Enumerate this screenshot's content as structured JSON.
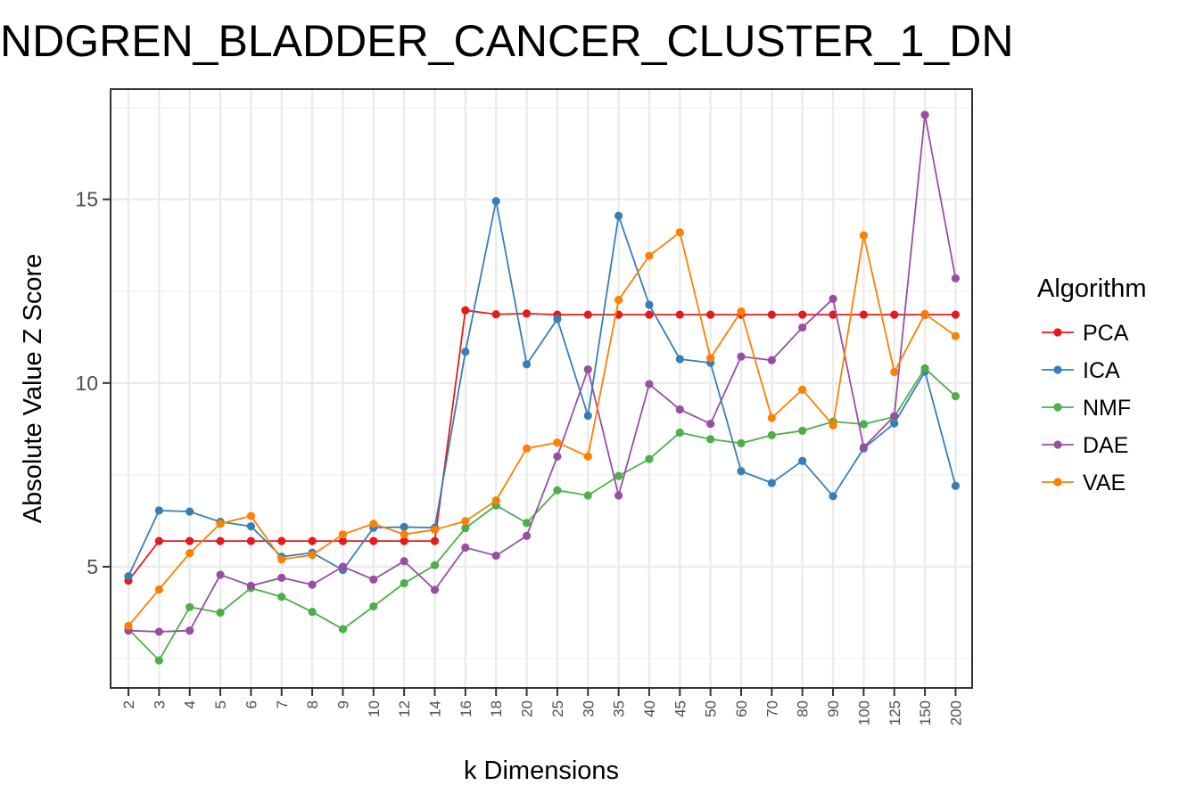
{
  "chart_data": {
    "type": "line",
    "title": "NDGREN_BLADDER_CANCER_CLUSTER_1_DN",
    "xlabel": "k Dimensions",
    "ylabel": "Absolute Value Z Score",
    "categories": [
      "2",
      "3",
      "4",
      "5",
      "6",
      "7",
      "8",
      "9",
      "10",
      "12",
      "14",
      "16",
      "18",
      "20",
      "25",
      "30",
      "35",
      "40",
      "45",
      "50",
      "60",
      "70",
      "80",
      "90",
      "100",
      "125",
      "150",
      "200"
    ],
    "yticks": [
      5,
      10,
      15
    ],
    "ylim": [
      1.7,
      18.0
    ],
    "grid": true,
    "legend": {
      "title": "Algorithm",
      "position": "right"
    },
    "series": [
      {
        "name": "PCA",
        "color": "#e41a1c",
        "values": [
          4.62,
          5.7,
          5.7,
          5.7,
          5.7,
          5.7,
          5.7,
          5.7,
          5.7,
          5.7,
          5.7,
          11.98,
          11.87,
          11.89,
          11.86,
          11.86,
          11.86,
          11.86,
          11.86,
          11.86,
          11.86,
          11.86,
          11.86,
          11.86,
          11.86,
          11.86,
          11.86,
          11.86
        ]
      },
      {
        "name": "ICA",
        "color": "#377eb8",
        "values": [
          4.74,
          6.53,
          6.5,
          6.22,
          6.1,
          5.27,
          5.38,
          4.91,
          6.06,
          6.08,
          6.06,
          10.85,
          14.95,
          10.51,
          11.74,
          9.11,
          14.55,
          12.13,
          10.65,
          10.55,
          7.6,
          7.28,
          7.88,
          6.92,
          8.22,
          8.9,
          10.31,
          7.2
        ]
      },
      {
        "name": "NMF",
        "color": "#4daf4a",
        "values": [
          3.3,
          2.45,
          3.9,
          3.75,
          4.42,
          4.18,
          3.77,
          3.3,
          3.92,
          4.55,
          5.04,
          6.05,
          6.67,
          6.19,
          7.08,
          6.94,
          7.47,
          7.93,
          8.65,
          8.47,
          8.36,
          8.58,
          8.7,
          8.95,
          8.88,
          9.08,
          10.4,
          9.64
        ]
      },
      {
        "name": "DAE",
        "color": "#984ea3",
        "values": [
          3.26,
          3.23,
          3.26,
          4.78,
          4.48,
          4.7,
          4.51,
          5.0,
          4.65,
          5.15,
          4.37,
          5.52,
          5.3,
          5.84,
          8.0,
          10.37,
          6.94,
          9.97,
          9.28,
          8.89,
          10.72,
          10.62,
          11.51,
          12.29,
          8.25,
          9.1,
          17.3,
          12.85
        ]
      },
      {
        "name": "VAE",
        "color": "#ff7f00",
        "values": [
          3.39,
          4.38,
          5.37,
          6.17,
          6.38,
          5.2,
          5.32,
          5.88,
          6.17,
          5.88,
          6.01,
          6.24,
          6.8,
          8.22,
          8.38,
          8.0,
          12.26,
          13.46,
          14.1,
          10.68,
          11.95,
          9.05,
          9.82,
          8.85,
          14.02,
          10.3,
          11.88,
          11.28
        ]
      }
    ]
  }
}
